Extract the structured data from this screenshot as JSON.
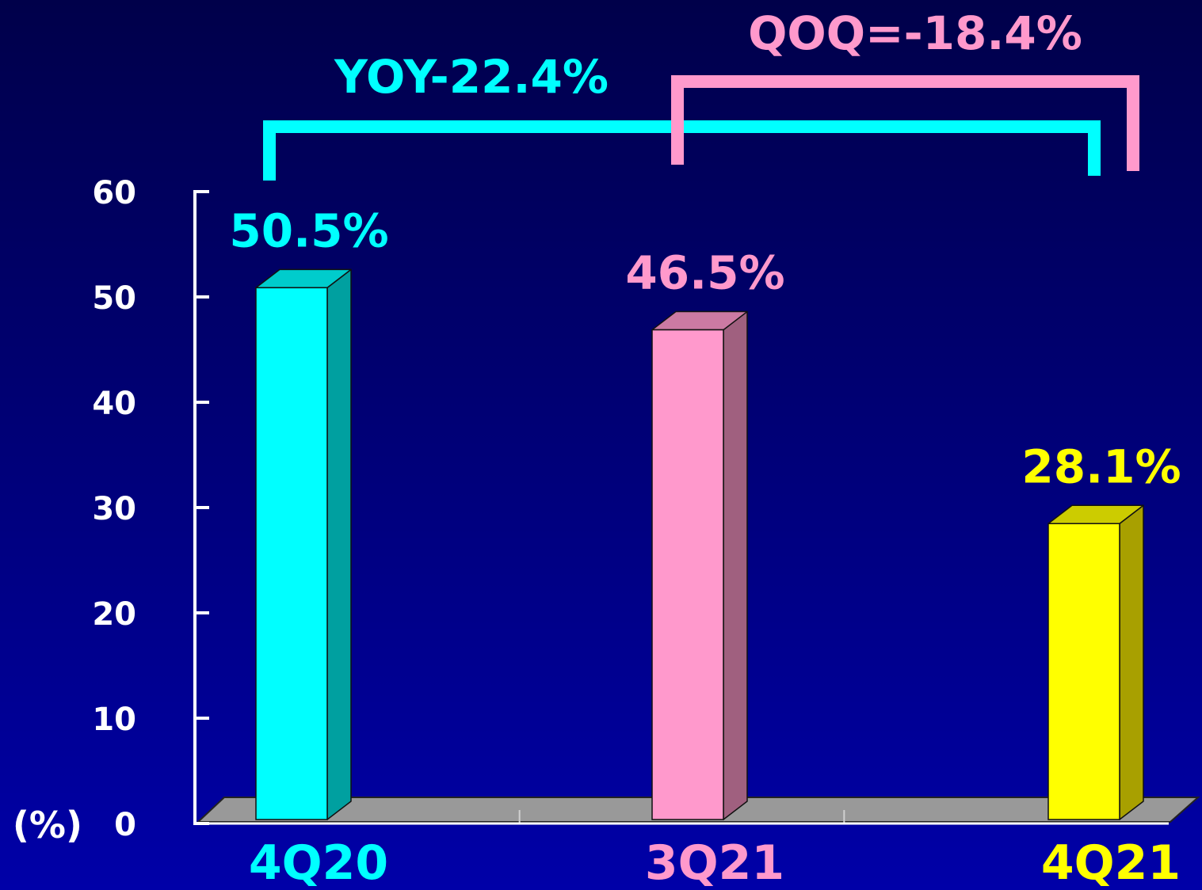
{
  "chart_data": {
    "type": "bar",
    "three_d": true,
    "categories": [
      "4Q20",
      "3Q21",
      "4Q21"
    ],
    "values": [
      50.5,
      46.5,
      28.1
    ],
    "data_labels": [
      "50.5%",
      "46.5%",
      "28.1%"
    ],
    "ylabel": "(%)",
    "ylim": [
      0,
      60
    ],
    "yticks": [
      0,
      10,
      20,
      30,
      40,
      50,
      60
    ],
    "grid": false,
    "legend": false,
    "bar_colors": [
      "#00FFFF",
      "#FF99CC",
      "#FFFF00"
    ],
    "bar_side_colors": [
      "#00A0A0",
      "#A0607F",
      "#A8A000"
    ],
    "bar_top_colors": [
      "#00CCCC",
      "#CC7AA3",
      "#CCCC00"
    ],
    "annotations": [
      {
        "text": "YOY-22.4%",
        "from": 0,
        "to": 2,
        "color": "#00FFFF"
      },
      {
        "text": "QOQ=-18.4%",
        "from": 1,
        "to": 2,
        "color": "#FF99CC"
      }
    ]
  },
  "colors": {
    "background_top": "#00004A",
    "background_mid": "#00007C",
    "background_bottom": "#0000A8",
    "axis": "#FFFFFF",
    "floor": "#999999",
    "floor_edge": "#222222",
    "floor_tick": "#D0D0D0",
    "bar_outline": "#111111"
  }
}
